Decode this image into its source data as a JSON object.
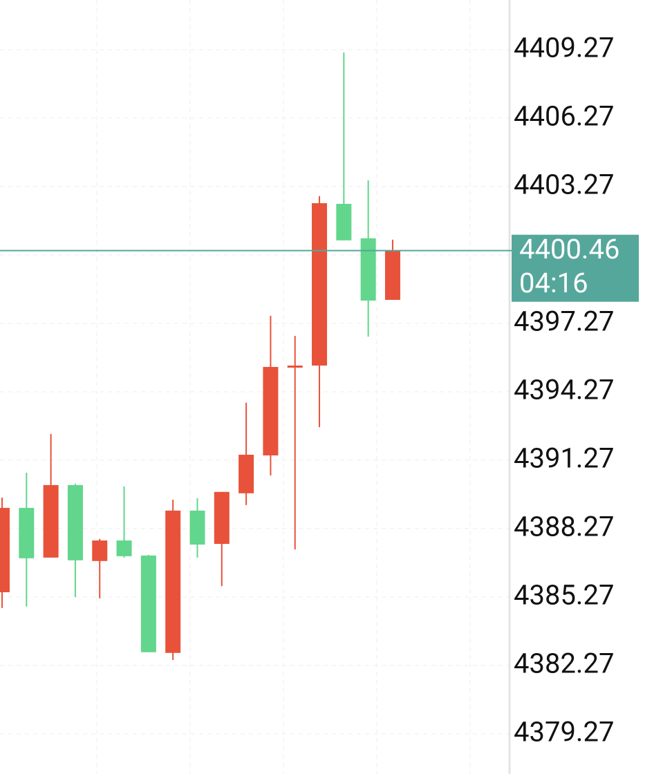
{
  "chart_data": {
    "type": "candlestick",
    "open": [
      4385.48,
      4389.18,
      4387.0,
      4390.18,
      4386.85,
      4387.75,
      4387.09,
      4382.82,
      4389.06,
      4387.6,
      4389.82,
      4391.48,
      4395.36,
      4395.42,
      4402.51,
      4401.0,
      4398.3
    ],
    "high": [
      4389.63,
      4390.72,
      4392.42,
      4390.24,
      4387.82,
      4390.12,
      4387.12,
      4389.54,
      4389.6,
      4389.88,
      4393.79,
      4397.6,
      4396.72,
      4402.85,
      4409.15,
      4403.54,
      4400.94
    ],
    "low": [
      4384.79,
      4384.85,
      4387.0,
      4385.27,
      4385.21,
      4387.0,
      4382.85,
      4382.51,
      4387.0,
      4385.75,
      4389.3,
      4390.6,
      4387.36,
      4392.72,
      4400.91,
      4396.69,
      4398.3
    ],
    "close": [
      4389.18,
      4386.97,
      4390.18,
      4386.88,
      4387.75,
      4387.06,
      4382.85,
      4389.06,
      4387.57,
      4389.88,
      4391.51,
      4395.36,
      4395.42,
      4402.54,
      4400.91,
      4398.27,
      4400.46
    ],
    "up_color": "#e8523a",
    "down_color": "#62d68c",
    "ylim": [
      4377.51,
      4411.45
    ],
    "yticks": [
      4379.27,
      4382.27,
      4385.27,
      4388.27,
      4391.27,
      4394.27,
      4397.27,
      4400.27,
      4403.27,
      4406.27,
      4409.27
    ],
    "current_price": 4400.46,
    "countdown": "04:16",
    "price_color": "#55a79b",
    "grid": true
  }
}
